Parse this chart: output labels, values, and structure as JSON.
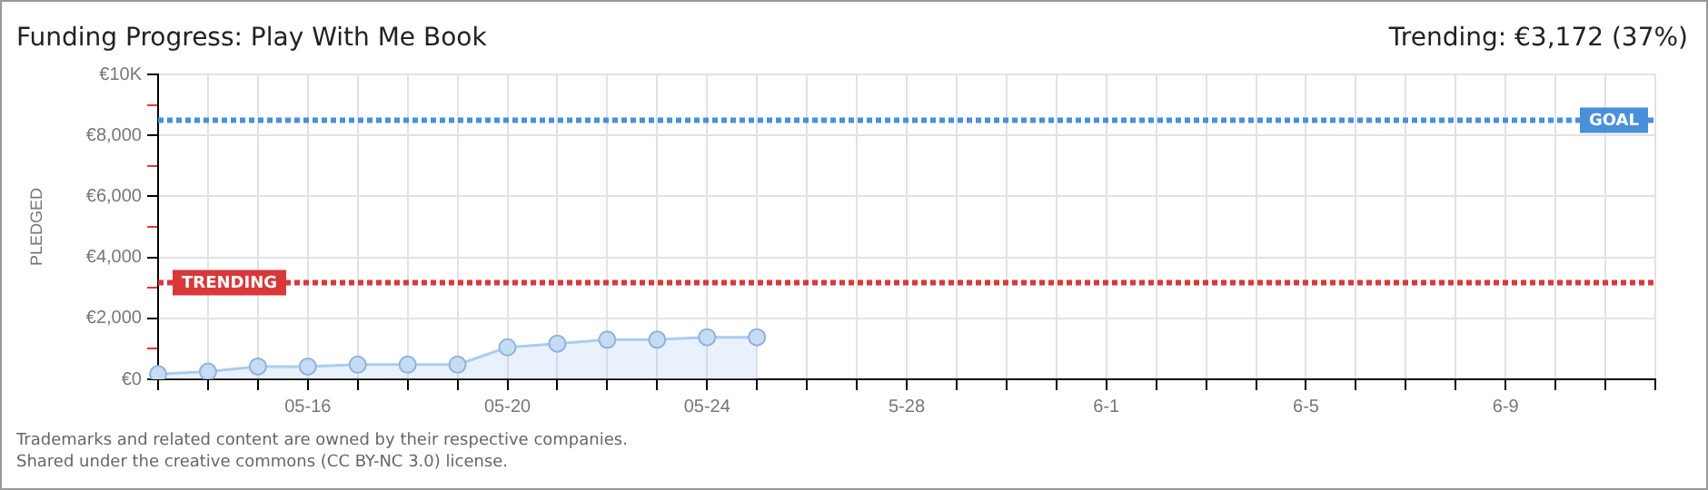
{
  "chart_data": {
    "type": "area",
    "title": "Funding Progress: Play With Me Book",
    "subtitle": "Trending: €3,172 (37%)",
    "ylabel": "PLEDGED",
    "categories": [
      null,
      null,
      null,
      "05-16",
      null,
      null,
      null,
      "05-20",
      null,
      null,
      null,
      "05-24",
      null,
      null,
      null,
      "5-28",
      null,
      null,
      null,
      "6-1",
      null,
      null,
      null,
      "6-5",
      null,
      null,
      null,
      "6-9",
      null,
      null,
      null
    ],
    "series": [
      {
        "color": "#a9cdf2",
        "values": [
          170,
          250,
          420,
          420,
          480,
          480,
          480,
          1050,
          1170,
          1300,
          1300,
          1380,
          1380,
          null,
          null,
          null,
          null,
          null,
          null,
          null,
          null,
          null,
          null,
          null,
          null,
          null,
          null,
          null,
          null,
          null,
          null
        ]
      }
    ],
    "ylim": [
      0,
      10000
    ],
    "yticks": [
      {
        "value": 0,
        "label": "€0"
      },
      {
        "value": 1000,
        "label": null
      },
      {
        "value": 2000,
        "label": "€2,000"
      },
      {
        "value": 3000,
        "label": null
      },
      {
        "value": 4000,
        "label": "€4,000"
      },
      {
        "value": 5000,
        "label": null
      },
      {
        "value": 6000,
        "label": "€6,000"
      },
      {
        "value": 7000,
        "label": null
      },
      {
        "value": 8000,
        "label": "€8,000"
      },
      {
        "value": 9000,
        "label": null
      },
      {
        "value": 10000,
        "label": "€10K"
      }
    ],
    "ref_lines": [
      {
        "axis": "y",
        "value": 8500,
        "label": "GOAL",
        "color": "#4a90d9",
        "line_style": "dotted"
      },
      {
        "axis": "y",
        "value": 3172,
        "label": "TRENDING",
        "color": "#d9383a",
        "line_style": "dotted"
      }
    ],
    "annotations": [
      "Trademarks and related content are owned by their respective companies.",
      "Shared under the creative commons (CC BY-NC 3.0) license."
    ],
    "grid": true,
    "legend": false,
    "marker": "circle",
    "line_style": "solid"
  }
}
